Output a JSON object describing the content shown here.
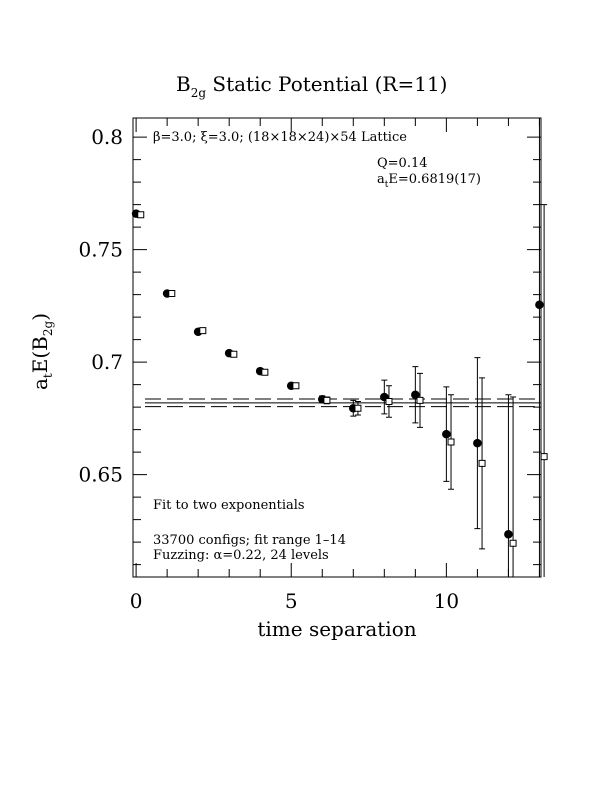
{
  "chart_data": {
    "type": "scatter",
    "title": {
      "main": "B",
      "sub": "2g",
      "rest": " Static Potential (R=11)"
    },
    "xlabel": "time separation",
    "ylabel": {
      "main": "a",
      "sub1": "t",
      "mid": "E(B",
      "sub2": "2g",
      "end": ")"
    },
    "xlim": [
      -0.1,
      13.05
    ],
    "ylim": [
      0.6045,
      0.8085
    ],
    "x_ticks": [
      {
        "v": 0,
        "label": "0"
      },
      {
        "v": 5,
        "label": "5"
      },
      {
        "v": 10,
        "label": "10"
      }
    ],
    "y_ticks": [
      {
        "v": 0.65,
        "label": "0.65"
      },
      {
        "v": 0.7,
        "label": "0.7"
      },
      {
        "v": 0.75,
        "label": "0.75"
      },
      {
        "v": 0.8,
        "label": "0.8"
      }
    ],
    "annotations": {
      "lattice": "β=3.0; ξ=3.0; (18×18×24)×54 Lattice",
      "q": "Q=0.14",
      "energy": {
        "main": "a",
        "sub": "t",
        "rest": "E=0.6819(17)"
      },
      "fit_desc": "Fit to two exponentials",
      "configs": "33700 configs; fit range 1–14",
      "fuzzing": "Fuzzing: α=0.22, 24 levels"
    },
    "fit": {
      "value": 0.6819,
      "error": 0.0017,
      "x_start": 1,
      "x_end": 14
    },
    "series": [
      {
        "marker": "filled-circle",
        "points": [
          {
            "x": 0,
            "y": 0.766,
            "err": 0.0005
          },
          {
            "x": 1,
            "y": 0.7305,
            "err": 0.0005
          },
          {
            "x": 2,
            "y": 0.7135,
            "err": 0.0005
          },
          {
            "x": 3,
            "y": 0.704,
            "err": 0.0005
          },
          {
            "x": 4,
            "y": 0.696,
            "err": 0.0005
          },
          {
            "x": 5,
            "y": 0.6895,
            "err": 0.0005
          },
          {
            "x": 6,
            "y": 0.6835,
            "err": 0.0015
          },
          {
            "x": 7,
            "y": 0.6795,
            "err": 0.0035
          },
          {
            "x": 8,
            "y": 0.6845,
            "err": 0.0075
          },
          {
            "x": 9,
            "y": 0.6855,
            "err": 0.0125
          },
          {
            "x": 10,
            "y": 0.668,
            "err": 0.021
          },
          {
            "x": 11,
            "y": 0.664,
            "err": 0.038
          },
          {
            "x": 12,
            "y": 0.6235,
            "err": 0.062
          },
          {
            "x": 13,
            "y": 0.7255,
            "err": 0.145
          }
        ]
      },
      {
        "marker": "open-square",
        "points": [
          {
            "x": 0.15,
            "y": 0.7655,
            "err": 0.0005
          },
          {
            "x": 1.15,
            "y": 0.7305,
            "err": 0.0005
          },
          {
            "x": 2.15,
            "y": 0.714,
            "err": 0.0005
          },
          {
            "x": 3.15,
            "y": 0.7035,
            "err": 0.0005
          },
          {
            "x": 4.15,
            "y": 0.6955,
            "err": 0.0005
          },
          {
            "x": 5.15,
            "y": 0.6895,
            "err": 0.0005
          },
          {
            "x": 6.15,
            "y": 0.683,
            "err": 0.0015
          },
          {
            "x": 7.15,
            "y": 0.6795,
            "err": 0.003
          },
          {
            "x": 8.15,
            "y": 0.6825,
            "err": 0.007
          },
          {
            "x": 9.15,
            "y": 0.683,
            "err": 0.012
          },
          {
            "x": 10.15,
            "y": 0.6645,
            "err": 0.021
          },
          {
            "x": 11.15,
            "y": 0.655,
            "err": 0.038
          },
          {
            "x": 12.15,
            "y": 0.6195,
            "err": 0.065
          },
          {
            "x": 13.15,
            "y": 0.658,
            "err": 0.112
          }
        ]
      }
    ]
  }
}
